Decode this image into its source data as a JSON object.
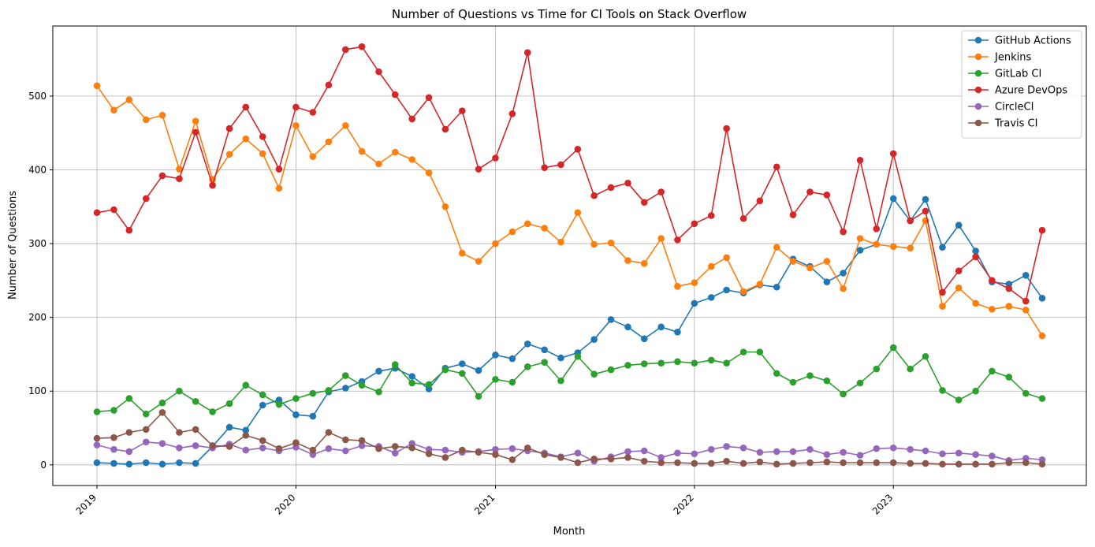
{
  "chart_data": {
    "type": "line",
    "title": "Number of Questions vs Time for CI Tools on Stack Overflow",
    "xlabel": "Month",
    "ylabel": "Number of Questions",
    "x_start": "2019-01",
    "x": [
      "2019-01",
      "2019-02",
      "2019-03",
      "2019-04",
      "2019-05",
      "2019-06",
      "2019-07",
      "2019-08",
      "2019-09",
      "2019-10",
      "2019-11",
      "2019-12",
      "2020-01",
      "2020-02",
      "2020-03",
      "2020-04",
      "2020-05",
      "2020-06",
      "2020-07",
      "2020-08",
      "2020-09",
      "2020-10",
      "2020-11",
      "2020-12",
      "2021-01",
      "2021-02",
      "2021-03",
      "2021-04",
      "2021-05",
      "2021-06",
      "2021-07",
      "2021-08",
      "2021-09",
      "2021-10",
      "2021-11",
      "2021-12",
      "2022-01",
      "2022-02",
      "2022-03",
      "2022-04",
      "2022-05",
      "2022-06",
      "2022-07",
      "2022-08",
      "2022-09",
      "2022-10",
      "2022-11",
      "2022-12",
      "2023-01",
      "2023-02",
      "2023-03",
      "2023-04",
      "2023-05",
      "2023-06",
      "2023-07",
      "2023-08",
      "2023-09",
      "2023-10"
    ],
    "xlim": [
      "2018-10-12",
      "2023-12-21"
    ],
    "ylim": [
      -28,
      595
    ],
    "x_ticks": [
      "2019",
      "2020",
      "2021",
      "2022",
      "2023"
    ],
    "y_ticks": [
      0,
      100,
      200,
      300,
      400,
      500
    ],
    "grid": true,
    "legend_position": "top-right",
    "series": [
      {
        "name": "GitHub Actions",
        "color": "#1f77b4",
        "values": [
          3,
          2,
          1,
          3,
          1,
          3,
          2,
          25,
          51,
          47,
          81,
          88,
          68,
          66,
          99,
          104,
          113,
          127,
          131,
          120,
          103,
          131,
          137,
          128,
          149,
          144,
          164,
          156,
          145,
          152,
          170,
          197,
          187,
          171,
          187,
          180,
          219,
          227,
          237,
          233,
          244,
          241,
          279,
          269,
          248,
          260,
          291,
          299,
          361,
          331,
          360,
          295,
          325,
          290,
          248,
          245,
          257,
          226
        ]
      },
      {
        "name": "Jenkins",
        "color": "#ff7f0e",
        "values": [
          514,
          481,
          495,
          468,
          474,
          401,
          466,
          387,
          421,
          442,
          422,
          375,
          460,
          418,
          438,
          460,
          425,
          408,
          424,
          414,
          396,
          350,
          287,
          276,
          300,
          316,
          327,
          321,
          302,
          342,
          299,
          301,
          277,
          273,
          307,
          242,
          247,
          269,
          281,
          235,
          245,
          295,
          276,
          267,
          276,
          239,
          307,
          299,
          296,
          294,
          331,
          215,
          240,
          219,
          211,
          215,
          210,
          175
        ]
      },
      {
        "name": "GitLab CI",
        "color": "#2ca02c",
        "values": [
          72,
          74,
          90,
          69,
          84,
          100,
          86,
          72,
          83,
          108,
          95,
          82,
          90,
          97,
          101,
          121,
          108,
          99,
          136,
          111,
          109,
          129,
          124,
          93,
          116,
          112,
          133,
          139,
          114,
          147,
          123,
          129,
          135,
          137,
          138,
          140,
          138,
          142,
          138,
          153,
          153,
          124,
          112,
          121,
          114,
          96,
          111,
          130,
          159,
          130,
          147,
          101,
          88,
          100,
          127,
          119,
          97,
          90
        ]
      },
      {
        "name": "Azure DevOps",
        "color": "#d62728",
        "values": [
          342,
          346,
          318,
          361,
          392,
          388,
          451,
          379,
          456,
          485,
          445,
          401,
          485,
          478,
          515,
          563,
          567,
          533,
          502,
          469,
          498,
          455,
          480,
          401,
          416,
          476,
          559,
          403,
          407,
          428,
          365,
          376,
          382,
          356,
          370,
          305,
          327,
          338,
          456,
          334,
          358,
          404,
          339,
          370,
          366,
          316,
          413,
          320,
          422,
          331,
          344,
          234,
          263,
          282,
          250,
          239,
          222,
          318
        ]
      },
      {
        "name": "CircleCI",
        "color": "#9467bd",
        "values": [
          27,
          21,
          18,
          31,
          29,
          23,
          26,
          23,
          28,
          20,
          23,
          19,
          24,
          14,
          22,
          19,
          26,
          25,
          16,
          29,
          21,
          20,
          17,
          18,
          21,
          22,
          19,
          16,
          11,
          16,
          5,
          11,
          18,
          19,
          10,
          16,
          15,
          21,
          25,
          23,
          17,
          18,
          18,
          21,
          14,
          17,
          13,
          22,
          23,
          21,
          19,
          15,
          16,
          14,
          12,
          6,
          9,
          7
        ]
      },
      {
        "name": "Travis CI",
        "color": "#8c564b",
        "values": [
          36,
          37,
          44,
          48,
          71,
          44,
          48,
          26,
          25,
          40,
          33,
          22,
          30,
          20,
          44,
          34,
          33,
          22,
          25,
          23,
          15,
          10,
          20,
          17,
          14,
          7,
          23,
          14,
          10,
          3,
          8,
          8,
          10,
          5,
          3,
          3,
          2,
          2,
          5,
          2,
          4,
          1,
          2,
          3,
          4,
          3,
          3,
          3,
          3,
          2,
          2,
          1,
          1,
          1,
          1,
          3,
          3,
          1
        ]
      }
    ]
  }
}
